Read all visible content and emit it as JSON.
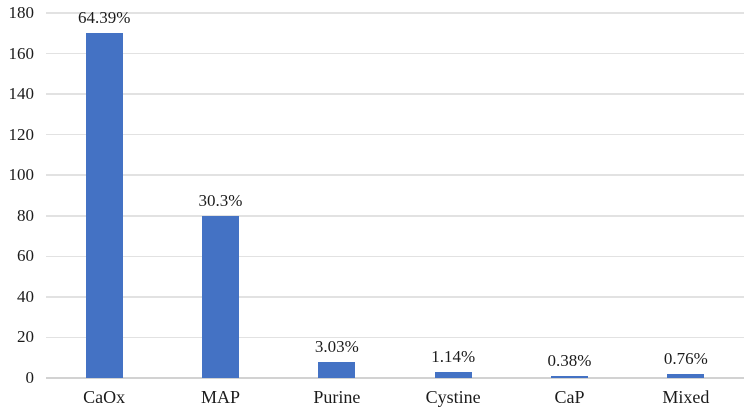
{
  "chart_data": {
    "type": "bar",
    "title": "",
    "xlabel": "",
    "ylabel": "",
    "categories": [
      "CaOx",
      "MAP",
      "Purine",
      "Cystine",
      "CaP",
      "Mixed"
    ],
    "values": [
      170,
      80,
      8,
      3,
      1,
      2
    ],
    "data_labels": [
      "64.39%",
      "30.3%",
      "3.03%",
      "1.14%",
      "0.38%",
      "0.76%"
    ],
    "yticks": [
      0,
      20,
      40,
      60,
      80,
      100,
      120,
      140,
      160,
      180
    ],
    "ylim": [
      0,
      180
    ],
    "grid": "horizontal",
    "legend": "none",
    "colors": {
      "bar": "#4472C4",
      "gridline": "#E2E2E2",
      "axis_line": "#D2D2D2",
      "text": "#1B1B1B",
      "background": "#FFFFFF"
    }
  }
}
